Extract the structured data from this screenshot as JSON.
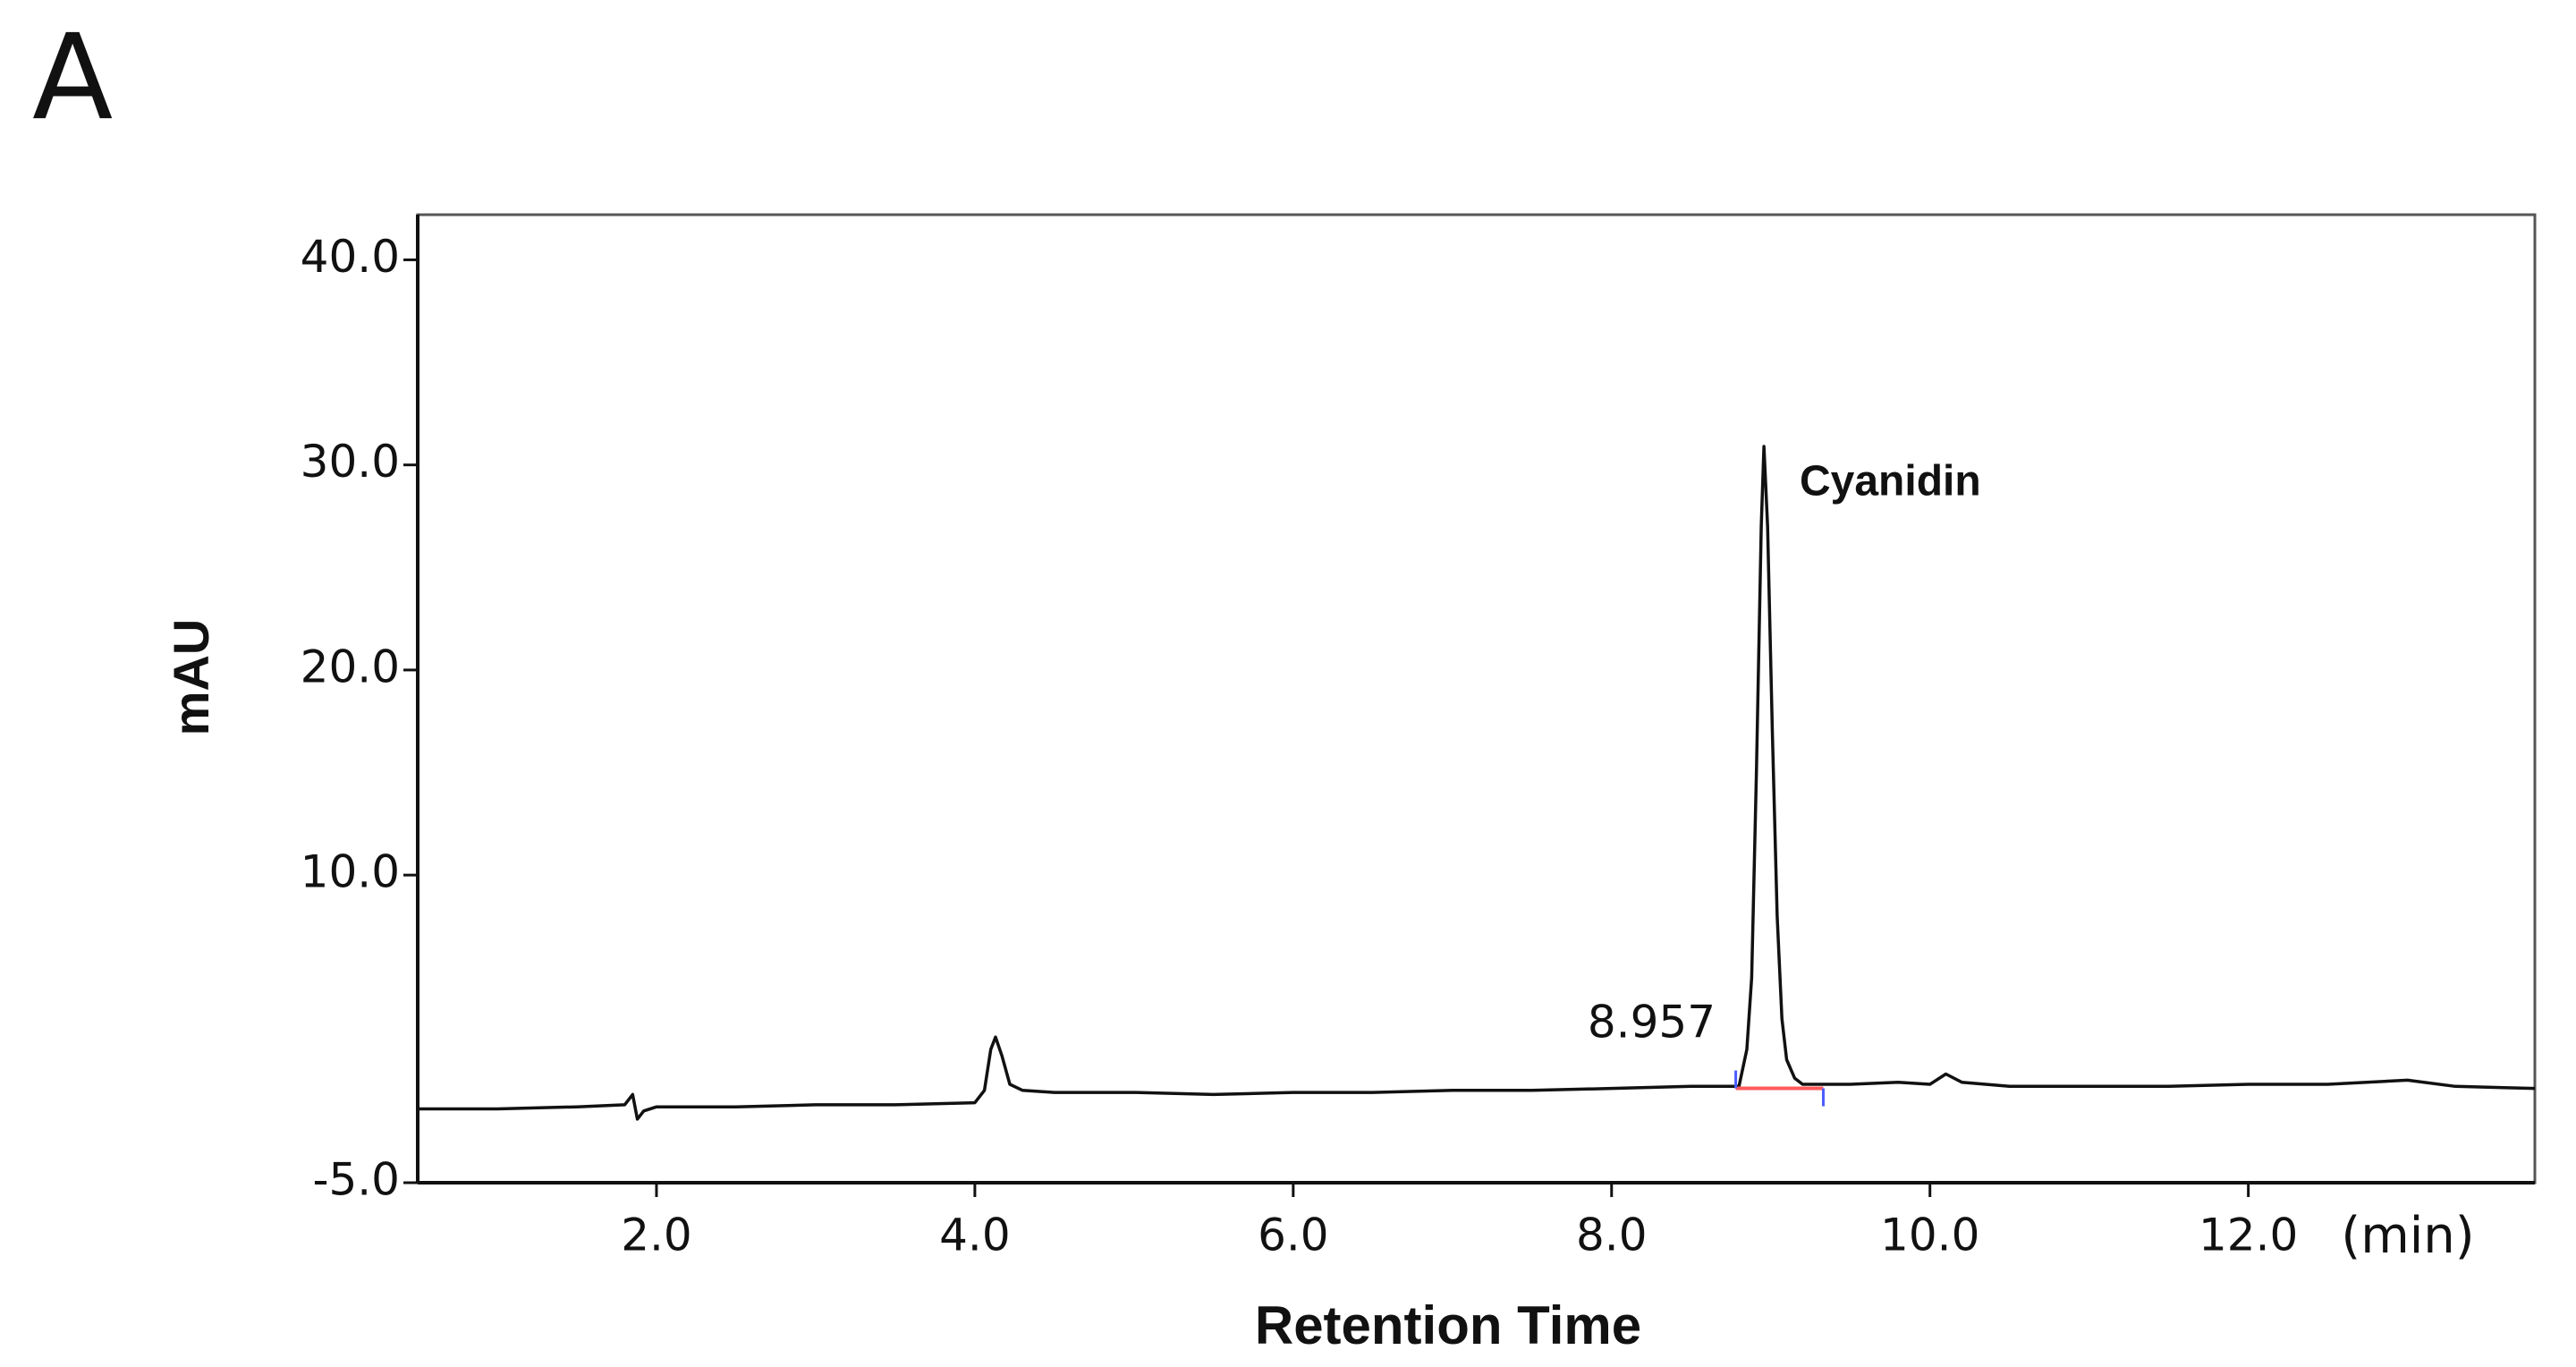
{
  "chart_data": {
    "type": "line",
    "panel_label": "A",
    "x_label": "Retention Time",
    "x_unit_label": "(min)",
    "y_label": "mAU",
    "annotations": [
      {
        "text": "8.957"
      },
      {
        "text": "Cyanidin"
      }
    ],
    "x": [
      0.5,
      1.0,
      1.5,
      1.8,
      1.85,
      1.88,
      1.92,
      2.0,
      2.5,
      3.0,
      3.5,
      4.0,
      4.06,
      4.1,
      4.13,
      4.17,
      4.22,
      4.3,
      4.5,
      5.0,
      5.5,
      6.0,
      6.5,
      7.0,
      7.5,
      8.0,
      8.5,
      8.8,
      8.85,
      8.88,
      8.91,
      8.94,
      8.957,
      8.98,
      9.01,
      9.04,
      9.07,
      9.1,
      9.15,
      9.2,
      9.5,
      9.8,
      10.0,
      10.1,
      10.2,
      10.5,
      11.0,
      11.5,
      12.0,
      12.5,
      13.0,
      13.3,
      13.8
    ],
    "series": [
      {
        "color": "#111111",
        "values": [
          -1.4,
          -1.4,
          -1.3,
          -1.2,
          -0.7,
          -1.9,
          -1.5,
          -1.3,
          -1.3,
          -1.2,
          -1.2,
          -1.1,
          -0.5,
          1.5,
          2.1,
          1.2,
          -0.2,
          -0.5,
          -0.6,
          -0.6,
          -0.7,
          -0.6,
          -0.6,
          -0.5,
          -0.5,
          -0.4,
          -0.3,
          -0.3,
          1.5,
          5,
          15,
          27,
          30.9,
          27,
          17,
          8,
          3,
          1,
          0.1,
          -0.2,
          -0.2,
          -0.1,
          -0.2,
          0.3,
          -0.1,
          -0.3,
          -0.3,
          -0.3,
          -0.2,
          -0.2,
          0.0,
          -0.3,
          -0.4
        ]
      }
    ],
    "integration_baseline": {
      "x": [
        8.78,
        9.33
      ],
      "values": [
        -0.4,
        -0.4
      ],
      "color": "#ff5a5a",
      "marker_color": "#4a5cff"
    },
    "xlim": [
      0.5,
      13.8
    ],
    "xticks": [
      {
        "value": 2,
        "label": "2.0"
      },
      {
        "value": 4,
        "label": "4.0"
      },
      {
        "value": 6,
        "label": "6.0"
      },
      {
        "value": 8,
        "label": "8.0"
      },
      {
        "value": 10,
        "label": "10.0"
      },
      {
        "value": 12,
        "label": "12.0"
      }
    ],
    "ylim": [
      -5,
      42.2
    ],
    "yticks": [
      {
        "value": -5,
        "label": "-5.0"
      },
      {
        "value": 10,
        "label": "10.0"
      },
      {
        "value": 20,
        "label": "20.0"
      },
      {
        "value": 30,
        "label": "30.0"
      },
      {
        "value": 40,
        "label": "40.0"
      }
    ],
    "grid": false
  }
}
